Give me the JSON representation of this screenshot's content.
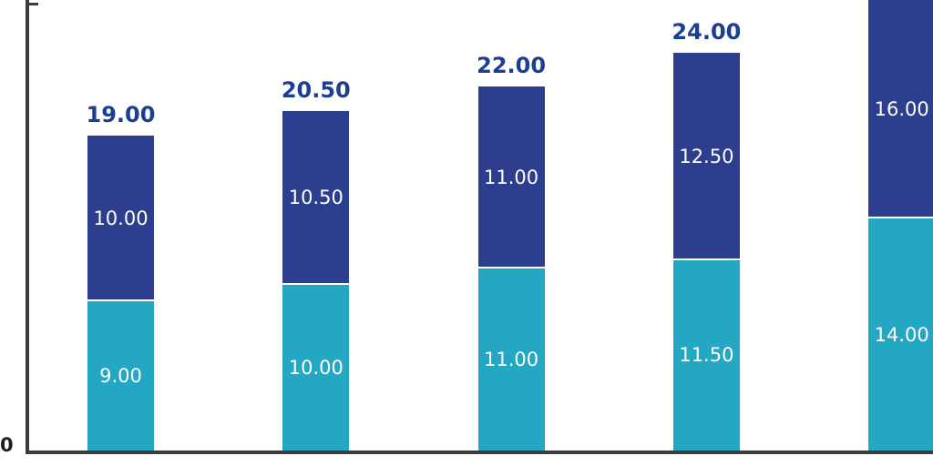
{
  "chart_data": {
    "type": "bar",
    "subtype": "stacked-column",
    "title": "",
    "legend": false,
    "grid": false,
    "ylim": [
      0,
      27.3
    ],
    "axis": {
      "origin_label": "0",
      "color": "#3b3b3b"
    },
    "series": [
      {
        "name": "bottom-segment",
        "color": "#23a7c2",
        "text_color": "#ffffff",
        "values": [
          9.0,
          10.0,
          11.0,
          11.5,
          14.0
        ],
        "labels": [
          "9.00",
          "10.00",
          "11.00",
          "11.50",
          "14.00"
        ]
      },
      {
        "name": "top-segment",
        "color": "#2c3e8d",
        "text_color": "#ffffff",
        "values": [
          10.0,
          10.5,
          11.0,
          12.5,
          16.0
        ],
        "labels": [
          "10.00",
          "10.50",
          "11.00",
          "12.50",
          "16.00"
        ]
      }
    ],
    "totals": {
      "color": "#1b3e93",
      "labels": [
        "19.00",
        "20.50",
        "22.00",
        "24.00",
        null
      ]
    }
  }
}
